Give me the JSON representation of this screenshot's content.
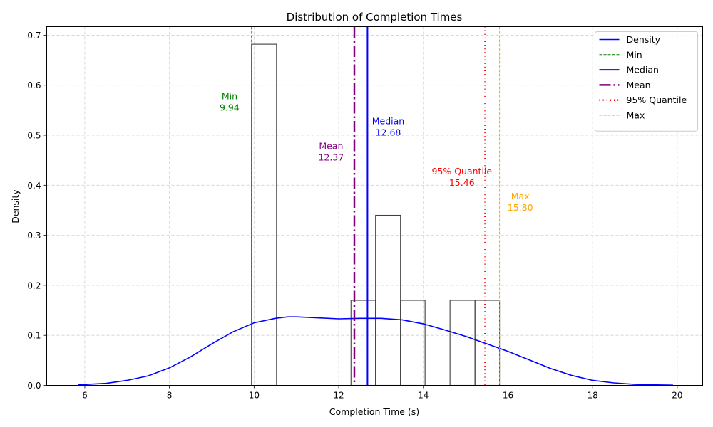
{
  "chart_data": {
    "type": "histogram",
    "title": "Distribution of Completion Times",
    "xlabel": "Completion Time (s)",
    "ylabel": "Density",
    "xlim": [
      5.1,
      20.6
    ],
    "ylim": [
      0,
      0.717
    ],
    "xticks": [
      6,
      8,
      10,
      12,
      14,
      16,
      18,
      20
    ],
    "yticks": [
      0.0,
      0.1,
      0.2,
      0.3,
      0.4,
      0.5,
      0.6,
      0.7
    ],
    "xtick_labels": [
      "6",
      "8",
      "10",
      "12",
      "14",
      "16",
      "18",
      "20"
    ],
    "ytick_labels": [
      "0.0",
      "0.1",
      "0.2",
      "0.3",
      "0.4",
      "0.5",
      "0.6",
      "0.7"
    ],
    "grid": true,
    "legend_position": "top-right",
    "histogram": {
      "bins": [
        {
          "x0": 9.94,
          "x1": 10.53,
          "density": 0.682
        },
        {
          "x0": 12.29,
          "x1": 12.87,
          "density": 0.17
        },
        {
          "x0": 12.87,
          "x1": 13.46,
          "density": 0.34
        },
        {
          "x0": 13.46,
          "x1": 14.04,
          "density": 0.17
        },
        {
          "x0": 14.63,
          "x1": 15.22,
          "density": 0.17
        },
        {
          "x0": 15.22,
          "x1": 15.8,
          "density": 0.17
        }
      ],
      "edge_color": "#404040"
    },
    "density_curve": {
      "name": "Density",
      "color": "#0000ff",
      "x": [
        5.84,
        6.5,
        7.0,
        7.5,
        8.0,
        8.5,
        9.0,
        9.5,
        10.0,
        10.5,
        10.8,
        11.0,
        11.5,
        12.0,
        12.5,
        13.0,
        13.5,
        14.0,
        14.5,
        15.0,
        15.5,
        16.0,
        16.5,
        17.0,
        17.5,
        18.0,
        18.5,
        19.0,
        19.5,
        19.9
      ],
      "y": [
        0.001,
        0.004,
        0.01,
        0.019,
        0.035,
        0.057,
        0.083,
        0.107,
        0.125,
        0.134,
        0.137,
        0.137,
        0.135,
        0.133,
        0.134,
        0.134,
        0.131,
        0.123,
        0.111,
        0.098,
        0.083,
        0.068,
        0.051,
        0.034,
        0.02,
        0.01,
        0.005,
        0.002,
        0.001,
        0.0005
      ]
    },
    "reference_lines": [
      {
        "name": "Min",
        "value": 9.94,
        "label": "Min",
        "value_label": "9.94",
        "color": "#008000",
        "style": "dashed",
        "width": 1,
        "label_x": 9.42,
        "label_y": 0.562
      },
      {
        "name": "Median",
        "value": 12.68,
        "label": "Median",
        "value_label": "12.68",
        "color": "#0000ff",
        "style": "solid",
        "width": 2,
        "label_x": 13.17,
        "label_y": 0.512
      },
      {
        "name": "Mean",
        "value": 12.37,
        "label": "Mean",
        "value_label": "12.37",
        "color": "#800080",
        "style": "dashdot",
        "width": 2.5,
        "label_x": 11.82,
        "label_y": 0.462
      },
      {
        "name": "95% Quantile",
        "value": 15.46,
        "label": "95% Quantile",
        "value_label": "15.46",
        "color": "#ff0000",
        "style": "dotted",
        "width": 2.5,
        "label_x": 14.91,
        "label_y": 0.412
      },
      {
        "name": "Max",
        "value": 15.8,
        "label": "Max",
        "value_label": "15.80",
        "color": "#ffa500",
        "style": "dashed",
        "width": 1,
        "label_x": 16.29,
        "label_y": 0.362
      }
    ],
    "legend": [
      {
        "name": "Density",
        "color": "#0000ff",
        "style": "solid",
        "width": 1.5
      },
      {
        "name": "Min",
        "color": "#008000",
        "style": "dashed",
        "width": 1
      },
      {
        "name": "Median",
        "color": "#0000ff",
        "style": "solid",
        "width": 2
      },
      {
        "name": "Mean",
        "color": "#800080",
        "style": "dashdot",
        "width": 2.5
      },
      {
        "name": "95% Quantile",
        "color": "#ff0000",
        "style": "dotted",
        "width": 2.5
      },
      {
        "name": "Max",
        "color": "#ffa500",
        "style": "dashed",
        "width": 1
      }
    ]
  }
}
